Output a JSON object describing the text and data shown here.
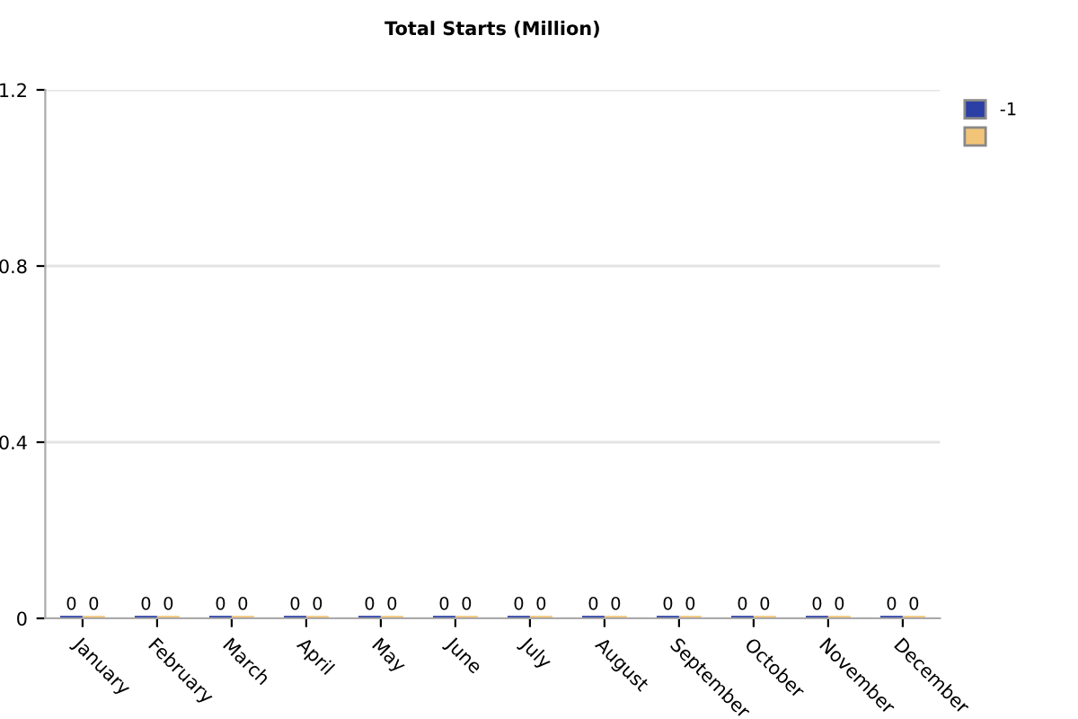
{
  "chart_data": {
    "type": "bar",
    "title": "Total Starts (Million)",
    "categories": [
      "January",
      "February",
      "March",
      "April",
      "May",
      "June",
      "July",
      "August",
      "September",
      "October",
      "November",
      "December"
    ],
    "series": [
      {
        "name": "-1",
        "color": "#2b3fa5",
        "values": [
          0,
          0,
          0,
          0,
          0,
          0,
          0,
          0,
          0,
          0,
          0,
          0
        ]
      },
      {
        "color": "#f2c478",
        "values": [
          0,
          0,
          0,
          0,
          0,
          0,
          0,
          0,
          0,
          0,
          0,
          0
        ]
      }
    ],
    "ylim": [
      0,
      1.2
    ],
    "yticks": [
      0,
      0.4,
      0.8,
      1.2
    ],
    "grid": "y",
    "legend": "top right",
    "data_labels": true
  }
}
